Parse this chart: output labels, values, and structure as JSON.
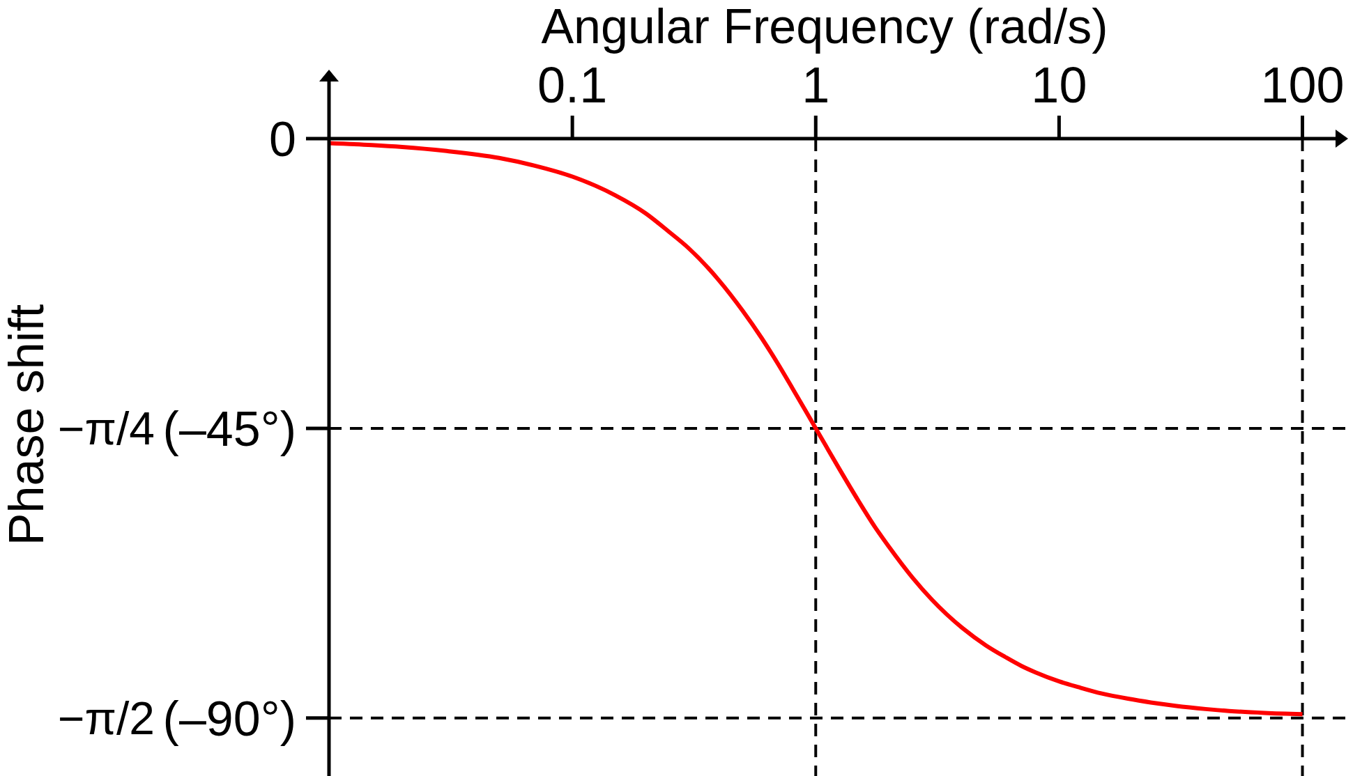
{
  "chart_data": {
    "type": "line",
    "xlabel": "Angular Frequency (rad/s)",
    "ylabel": "Phase shift",
    "x": [
      0.01,
      0.015,
      0.02,
      0.03,
      0.05,
      0.07,
      0.1,
      0.15,
      0.2,
      0.25,
      0.3,
      0.4,
      0.5,
      0.6,
      0.7,
      0.8,
      0.9,
      1,
      1.1,
      1.25,
      1.5,
      1.75,
      2,
      2.5,
      3,
      4,
      5,
      6,
      7,
      8,
      10,
      12,
      15,
      20,
      25,
      30,
      40,
      50,
      70,
      100
    ],
    "series": [
      {
        "color": "#ff0000",
        "values": [
          -0.7,
          -1,
          -1.3,
          -1.9,
          -3,
          -4.2,
          -5.9,
          -8.8,
          -11.6,
          -14.5,
          -17,
          -22,
          -26.7,
          -31,
          -35,
          -38.7,
          -42,
          -45,
          -47.7,
          -51.3,
          -56.3,
          -60.3,
          -63.4,
          -68.2,
          -71.6,
          -76,
          -78.7,
          -80.5,
          -81.9,
          -82.9,
          -84.3,
          -85.2,
          -86.2,
          -87.1,
          -87.7,
          -88.1,
          -88.6,
          -88.9,
          -89.2,
          -89.4
        ]
      }
    ],
    "log": "x",
    "xlim": [
      0.01,
      150
    ],
    "xticks": [
      0.1,
      1,
      10,
      100
    ],
    "ylim": [
      -99,
      0
    ],
    "yticks": [
      0,
      {
        "value": -45,
        "label": "(–45°)"
      },
      {
        "value": -90,
        "label": "(–90°)"
      }
    ],
    "annotations": [
      "−π/4",
      "−π/2"
    ],
    "ref_lines": [
      {
        "axis": "x",
        "value": 1,
        "color": "#000000",
        "line_style": "dashed"
      },
      {
        "axis": "x",
        "value": 100,
        "color": "#000000",
        "line_style": "dashed"
      },
      {
        "axis": "y",
        "value": -45,
        "color": "#000000",
        "line_style": "dashed"
      },
      {
        "axis": "y",
        "value": -90,
        "color": "#000000",
        "line_style": "dashed"
      }
    ],
    "marker": "none",
    "line_style": "solid"
  }
}
